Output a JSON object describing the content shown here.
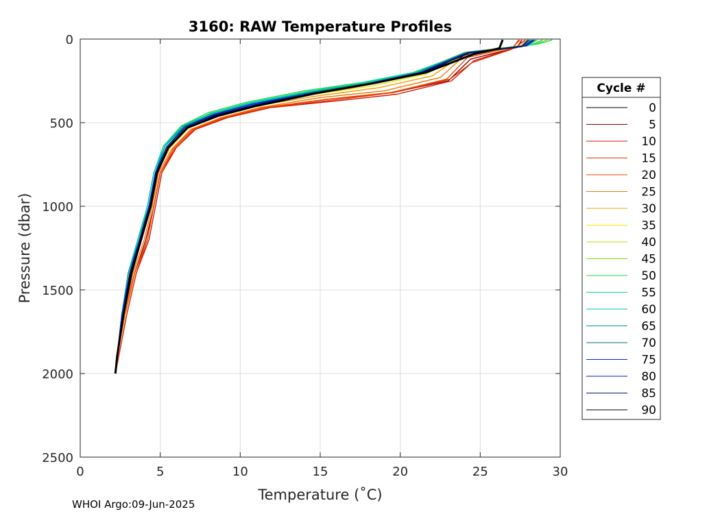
{
  "chart_data": {
    "type": "line",
    "title": "3160: RAW Temperature Profiles",
    "xlabel": "Temperature (˚C)",
    "ylabel": "Pressure (dbar)",
    "xlim": [
      0,
      30
    ],
    "ylim": [
      0,
      2500
    ],
    "y_reversed": true,
    "grid": true,
    "xticks": [
      0,
      5,
      10,
      15,
      20,
      25,
      30
    ],
    "yticks": [
      0,
      500,
      1000,
      1500,
      2000,
      2500
    ],
    "legend": {
      "title": "Cycle #",
      "placement": "outside-right",
      "entries": [
        {
          "label": "0",
          "color": "#000000"
        },
        {
          "label": "5",
          "color": "#8b0000"
        },
        {
          "label": "10",
          "color": "#cc1a00"
        },
        {
          "label": "15",
          "color": "#e82b00"
        },
        {
          "label": "20",
          "color": "#ee4a00"
        },
        {
          "label": "25",
          "color": "#f07800"
        },
        {
          "label": "30",
          "color": "#f0a000"
        },
        {
          "label": "35",
          "color": "#f4e400"
        },
        {
          "label": "40",
          "color": "#b8e000"
        },
        {
          "label": "45",
          "color": "#78e000"
        },
        {
          "label": "50",
          "color": "#1ed848"
        },
        {
          "label": "55",
          "color": "#00d8a0"
        },
        {
          "label": "60",
          "color": "#00c0c0"
        },
        {
          "label": "65",
          "color": "#0098a8"
        },
        {
          "label": "70",
          "color": "#006c80"
        },
        {
          "label": "75",
          "color": "#0022e0"
        },
        {
          "label": "80",
          "color": "#001cb0"
        },
        {
          "label": "85",
          "color": "#000a60"
        },
        {
          "label": "90",
          "color": "#000000"
        }
      ]
    },
    "series": [
      {
        "cycle": 0,
        "color": "#000000",
        "x": [
          28.0,
          27.8,
          24.3,
          21.4,
          18.2,
          14.6,
          11.0,
          8.6,
          6.8,
          5.5,
          4.8,
          4.4,
          3.8,
          3.2,
          2.7,
          2.3,
          2.2
        ],
        "y": [
          5,
          40,
          90,
          200,
          260,
          320,
          400,
          460,
          530,
          650,
          800,
          1000,
          1200,
          1400,
          1650,
          1900,
          2000
        ]
      },
      {
        "cycle": 5,
        "color": "#8b0000",
        "x": [
          27.6,
          27.3,
          24.4,
          23.0,
          19.5,
          15.5,
          11.5,
          8.9,
          7.0,
          5.8,
          5.0,
          4.6,
          4.1,
          3.4,
          2.8,
          2.3,
          2.2
        ],
        "y": [
          5,
          50,
          120,
          250,
          320,
          360,
          410,
          470,
          540,
          660,
          800,
          1000,
          1200,
          1400,
          1650,
          1900,
          2000
        ]
      },
      {
        "cycle": 10,
        "color": "#cc1a00",
        "x": [
          27.8,
          27.2,
          24.6,
          23.2,
          19.8,
          16.0,
          11.9,
          9.2,
          7.2,
          6.0,
          5.1,
          4.7,
          4.3,
          3.5,
          2.9,
          2.4,
          2.2
        ],
        "y": [
          5,
          50,
          130,
          250,
          330,
          370,
          410,
          470,
          540,
          650,
          800,
          1000,
          1200,
          1400,
          1650,
          1900,
          2000
        ]
      },
      {
        "cycle": 15,
        "color": "#e82b00",
        "x": [
          27.4,
          27.0,
          24.5,
          23.1,
          19.6,
          15.8,
          11.8,
          9.1,
          7.1,
          5.9,
          5.0,
          4.6,
          4.2,
          3.5,
          2.9,
          2.4,
          2.2
        ],
        "y": [
          5,
          60,
          140,
          240,
          320,
          365,
          410,
          470,
          540,
          660,
          800,
          1000,
          1200,
          1400,
          1650,
          1900,
          2000
        ]
      },
      {
        "cycle": 20,
        "color": "#ee4a00",
        "x": [
          27.5,
          27.0,
          24.2,
          22.9,
          19.4,
          15.4,
          11.5,
          8.9,
          7.0,
          5.8,
          5.0,
          4.6,
          4.2,
          3.4,
          2.8,
          2.3,
          2.2
        ],
        "y": [
          5,
          50,
          110,
          240,
          320,
          360,
          410,
          470,
          540,
          660,
          800,
          1000,
          1200,
          1400,
          1650,
          1900,
          2000
        ]
      },
      {
        "cycle": 25,
        "color": "#f07800",
        "x": [
          27.9,
          27.5,
          24.0,
          22.5,
          19.0,
          15.0,
          11.2,
          8.8,
          6.9,
          5.7,
          4.9,
          4.5,
          4.0,
          3.3,
          2.8,
          2.3,
          2.2
        ],
        "y": [
          5,
          45,
          100,
          230,
          310,
          350,
          410,
          470,
          540,
          660,
          800,
          1000,
          1200,
          1400,
          1650,
          1900,
          2000
        ]
      },
      {
        "cycle": 30,
        "color": "#f0a000",
        "x": [
          28.1,
          27.6,
          24.0,
          22.0,
          18.7,
          14.8,
          11.0,
          8.6,
          6.8,
          5.6,
          4.8,
          4.4,
          3.8,
          3.2,
          2.7,
          2.3,
          2.2
        ],
        "y": [
          5,
          40,
          90,
          220,
          290,
          340,
          400,
          460,
          530,
          650,
          800,
          1000,
          1200,
          1400,
          1650,
          1900,
          2000
        ]
      },
      {
        "cycle": 35,
        "color": "#f4e400",
        "x": [
          28.3,
          27.9,
          24.1,
          21.6,
          18.3,
          14.6,
          10.8,
          8.5,
          6.7,
          5.5,
          4.8,
          4.3,
          3.7,
          3.1,
          2.6,
          2.3,
          2.2
        ],
        "y": [
          5,
          40,
          90,
          210,
          280,
          330,
          400,
          460,
          530,
          650,
          800,
          1000,
          1200,
          1400,
          1650,
          1900,
          2000
        ]
      },
      {
        "cycle": 40,
        "color": "#b8e000",
        "x": [
          28.6,
          28.0,
          24.0,
          21.2,
          18.0,
          14.3,
          10.6,
          8.3,
          6.6,
          5.4,
          4.7,
          4.3,
          3.7,
          3.1,
          2.6,
          2.3,
          2.2
        ],
        "y": [
          5,
          40,
          80,
          200,
          270,
          320,
          390,
          450,
          520,
          650,
          800,
          1000,
          1200,
          1400,
          1650,
          1900,
          2000
        ]
      },
      {
        "cycle": 45,
        "color": "#78e000",
        "x": [
          29.2,
          28.4,
          24.0,
          21.0,
          17.8,
          14.2,
          10.5,
          8.2,
          6.5,
          5.3,
          4.7,
          4.3,
          3.6,
          3.0,
          2.6,
          2.3,
          2.2
        ],
        "y": [
          5,
          30,
          80,
          200,
          260,
          320,
          390,
          450,
          520,
          640,
          800,
          1000,
          1200,
          1400,
          1650,
          1900,
          2000
        ]
      },
      {
        "cycle": 50,
        "color": "#1ed848",
        "x": [
          29.5,
          28.6,
          24.2,
          20.8,
          17.6,
          14.0,
          10.3,
          8.0,
          6.3,
          5.2,
          4.6,
          4.2,
          3.6,
          3.0,
          2.6,
          2.3,
          2.2
        ],
        "y": [
          5,
          30,
          80,
          200,
          260,
          310,
          380,
          440,
          520,
          640,
          800,
          1000,
          1200,
          1400,
          1650,
          1900,
          2000
        ]
      },
      {
        "cycle": 55,
        "color": "#00d8a0",
        "x": [
          28.9,
          28.2,
          24.1,
          20.9,
          17.7,
          14.1,
          10.4,
          8.1,
          6.4,
          5.2,
          4.6,
          4.2,
          3.6,
          3.0,
          2.6,
          2.3,
          2.2
        ],
        "y": [
          5,
          35,
          85,
          200,
          260,
          315,
          385,
          445,
          520,
          640,
          800,
          1000,
          1200,
          1400,
          1650,
          1900,
          2000
        ]
      },
      {
        "cycle": 60,
        "color": "#00c0c0",
        "x": [
          28.5,
          27.9,
          24.0,
          21.0,
          17.8,
          14.2,
          10.5,
          8.2,
          6.4,
          5.3,
          4.6,
          4.2,
          3.6,
          3.0,
          2.6,
          2.3,
          2.2
        ],
        "y": [
          5,
          40,
          85,
          200,
          265,
          320,
          385,
          445,
          520,
          640,
          800,
          1000,
          1200,
          1400,
          1650,
          1900,
          2000
        ]
      },
      {
        "cycle": 65,
        "color": "#0098a8",
        "x": [
          28.2,
          27.8,
          24.0,
          21.1,
          17.9,
          14.3,
          10.6,
          8.3,
          6.5,
          5.3,
          4.7,
          4.3,
          3.7,
          3.0,
          2.6,
          2.3,
          2.2
        ],
        "y": [
          5,
          40,
          85,
          200,
          265,
          320,
          390,
          450,
          520,
          640,
          800,
          1000,
          1200,
          1400,
          1650,
          1900,
          2000
        ]
      },
      {
        "cycle": 70,
        "color": "#006c80",
        "x": [
          28.1,
          27.7,
          24.1,
          21.2,
          18.0,
          14.4,
          10.7,
          8.3,
          6.5,
          5.4,
          4.7,
          4.3,
          3.7,
          3.1,
          2.6,
          2.3,
          2.2
        ],
        "y": [
          5,
          40,
          85,
          200,
          265,
          320,
          390,
          450,
          525,
          645,
          800,
          1000,
          1200,
          1400,
          1650,
          1900,
          2000
        ]
      },
      {
        "cycle": 75,
        "color": "#0022e0",
        "x": [
          28.4,
          27.9,
          24.2,
          21.3,
          18.1,
          14.5,
          10.7,
          8.4,
          6.6,
          5.4,
          4.7,
          4.3,
          3.7,
          3.1,
          2.6,
          2.3,
          2.2
        ],
        "y": [
          5,
          40,
          80,
          200,
          265,
          325,
          390,
          450,
          525,
          645,
          800,
          1000,
          1200,
          1400,
          1650,
          1900,
          2000
        ]
      },
      {
        "cycle": 80,
        "color": "#001cb0",
        "x": [
          28.3,
          27.8,
          24.3,
          21.3,
          18.1,
          14.5,
          10.8,
          8.4,
          6.6,
          5.4,
          4.7,
          4.3,
          3.7,
          3.1,
          2.7,
          2.3,
          2.2
        ],
        "y": [
          5,
          40,
          80,
          200,
          265,
          325,
          395,
          455,
          525,
          645,
          800,
          1000,
          1200,
          1400,
          1650,
          1900,
          2000
        ]
      },
      {
        "cycle": 85,
        "color": "#000a60",
        "x": [
          28.0,
          27.6,
          24.3,
          21.4,
          18.2,
          14.6,
          10.9,
          8.5,
          6.7,
          5.5,
          4.8,
          4.4,
          3.8,
          3.1,
          2.7,
          2.3,
          2.2
        ],
        "y": [
          5,
          45,
          85,
          200,
          265,
          325,
          395,
          455,
          530,
          650,
          800,
          1000,
          1200,
          1400,
          1650,
          1900,
          2000
        ]
      },
      {
        "cycle": 90,
        "color": "#000000",
        "x": [
          26.4,
          26.2,
          24.6,
          21.6,
          18.3,
          14.7,
          11.0,
          8.6,
          6.7,
          5.5,
          4.8,
          4.4,
          3.8,
          3.2,
          2.7,
          2.3,
          2.2
        ],
        "y": [
          5,
          55,
          90,
          200,
          265,
          325,
          400,
          460,
          530,
          650,
          800,
          1000,
          1200,
          1400,
          1650,
          1900,
          2000
        ]
      }
    ]
  },
  "footer": "WHOI Argo:09-Jun-2025"
}
